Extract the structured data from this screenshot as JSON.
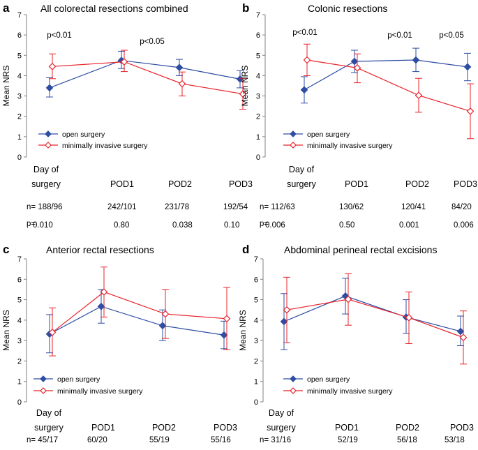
{
  "figure": {
    "colors": {
      "open": "#2e4da3",
      "mis": "#e8232a",
      "axis": "#000000"
    },
    "series_names": [
      "open surgery",
      "minimally invasive surgery"
    ],
    "x_labels": [
      "Day of surgery",
      "POD1",
      "POD2",
      "POD3"
    ],
    "y_label": "Mean NRS",
    "y_ticks": [
      "0",
      "1",
      "2",
      "3",
      "4",
      "5",
      "6",
      "7"
    ],
    "n_prefix": "n=",
    "p_prefix": "p="
  },
  "chart_data": [
    {
      "type": "line",
      "letter": "a",
      "title": "All colorectal resections combined",
      "categories": [
        "Day of surgery",
        "POD1",
        "POD2",
        "POD3"
      ],
      "ylabel": "Mean NRS",
      "ylim": [
        0,
        7
      ],
      "series": [
        {
          "name": "open surgery",
          "values": [
            3.4,
            4.75,
            4.4,
            3.83
          ],
          "err_low": [
            2.95,
            4.35,
            4.0,
            3.4
          ],
          "err_high": [
            3.9,
            5.2,
            4.8,
            4.25
          ]
        },
        {
          "name": "minimally invasive surgery",
          "values": [
            4.45,
            4.68,
            3.6,
            3.1
          ],
          "err_low": [
            3.85,
            4.2,
            3.0,
            2.35
          ],
          "err_high": [
            5.07,
            5.25,
            4.18,
            3.87
          ]
        }
      ],
      "annotations": [
        {
          "x_index": 0,
          "text": "p<0.01",
          "y": 6.0
        },
        {
          "x_index": 2,
          "text": "p<0.05",
          "y": 5.7
        }
      ],
      "n": [
        "188/96",
        "242/101",
        "231/78",
        "192/54"
      ],
      "p": [
        "0.010",
        "0.80",
        "0.038",
        "0.10"
      ]
    },
    {
      "type": "line",
      "letter": "b",
      "title": "Colonic resections",
      "categories": [
        "Day of surgery",
        "POD1",
        "POD2",
        "POD3"
      ],
      "ylabel": "Mean NRS",
      "ylim": [
        0,
        7
      ],
      "series": [
        {
          "name": "open surgery",
          "values": [
            3.3,
            4.7,
            4.77,
            4.43
          ],
          "err_low": [
            2.65,
            4.15,
            4.2,
            3.75
          ],
          "err_high": [
            3.95,
            5.25,
            5.35,
            5.1
          ]
        },
        {
          "name": "minimally invasive surgery",
          "values": [
            4.77,
            4.38,
            3.03,
            2.25
          ],
          "err_low": [
            4.0,
            3.65,
            2.2,
            0.9
          ],
          "err_high": [
            5.55,
            5.07,
            3.87,
            3.6
          ]
        }
      ],
      "annotations": [
        {
          "x_index": 0,
          "text": "p<0.01",
          "y": 6.15
        },
        {
          "x_index": 2,
          "text": "p<0.01",
          "y": 6.0
        },
        {
          "x_index": 3,
          "text": "p<0.05",
          "y": 6.0
        }
      ],
      "n": [
        "112/63",
        "130/62",
        "120/41",
        "84/20"
      ],
      "p": [
        "0.006",
        "0.50",
        "0.001",
        "0.006"
      ]
    },
    {
      "type": "line",
      "letter": "c",
      "title": "Anterior rectal resections",
      "categories": [
        "Day of surgery",
        "POD1",
        "POD2",
        "POD3"
      ],
      "ylabel": "Mean NRS",
      "ylim": [
        0,
        7
      ],
      "series": [
        {
          "name": "open surgery",
          "values": [
            3.32,
            4.67,
            3.73,
            3.27
          ],
          "err_low": [
            2.4,
            3.85,
            3.0,
            2.6
          ],
          "err_high": [
            4.27,
            5.5,
            4.5,
            3.95
          ]
        },
        {
          "name": "minimally invasive surgery",
          "values": [
            3.4,
            5.38,
            4.3,
            4.07
          ],
          "err_low": [
            2.25,
            4.15,
            3.1,
            2.55
          ],
          "err_high": [
            4.6,
            6.6,
            5.5,
            5.6
          ]
        }
      ],
      "annotations": [],
      "n": [
        "45/17",
        "60/20",
        "55/19",
        "55/16"
      ],
      "p": []
    },
    {
      "type": "line",
      "letter": "d",
      "title": "Abdominal perineal rectal excisions",
      "categories": [
        "Day of surgery",
        "POD1",
        "POD2",
        "POD3"
      ],
      "ylabel": "Mean NRS",
      "ylim": [
        0,
        7
      ],
      "series": [
        {
          "name": "open surgery",
          "values": [
            3.93,
            5.18,
            4.15,
            3.45
          ],
          "err_low": [
            2.55,
            4.3,
            3.35,
            2.75
          ],
          "err_high": [
            5.3,
            6.05,
            5.0,
            4.2
          ]
        },
        {
          "name": "minimally invasive surgery",
          "values": [
            4.5,
            5.02,
            4.12,
            3.15
          ],
          "err_low": [
            2.9,
            3.75,
            2.85,
            1.85
          ],
          "err_high": [
            6.1,
            6.28,
            5.38,
            4.45
          ]
        }
      ],
      "annotations": [],
      "n": [
        "31/16",
        "52/19",
        "56/18",
        "53/18"
      ],
      "p": []
    }
  ]
}
